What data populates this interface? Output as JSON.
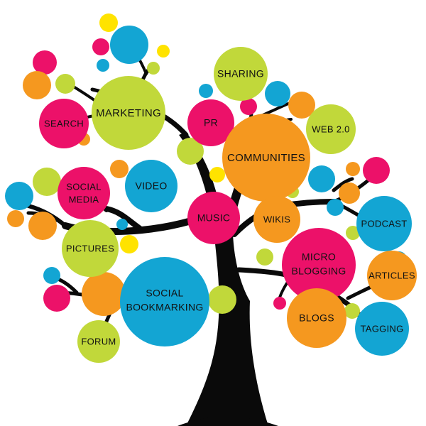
{
  "colors": {
    "pink": "#ec1169",
    "cyan": "#13a5d3",
    "orange": "#f5981f",
    "lime": "#c1d83a",
    "yellow": "#ffe300",
    "trunk": "#0a0a0a",
    "text": "#111111"
  },
  "labels": {
    "sharing": "SHARING",
    "marketing": "MARKETING",
    "search": "SEARCH",
    "pr": "PR",
    "communities": "COMMUNITIES",
    "web20": "WEB 2.0",
    "social_media_1": "SOCIAL",
    "social_media_2": "MEDIA",
    "video": "VIDEO",
    "music": "MUSIC",
    "wikis": "WIKIS",
    "podcast": "PODCAST",
    "pictures": "PICTURES",
    "micro_blogging_1": "MICRO",
    "micro_blogging_2": "BLOGGING",
    "articles": "ARTICLES",
    "social_bookmarking_1": "SOCIAL",
    "social_bookmarking_2": "BOOKMARKING",
    "blogs": "BLOGS",
    "forum": "FORUM",
    "tagging": "TAGGING"
  }
}
